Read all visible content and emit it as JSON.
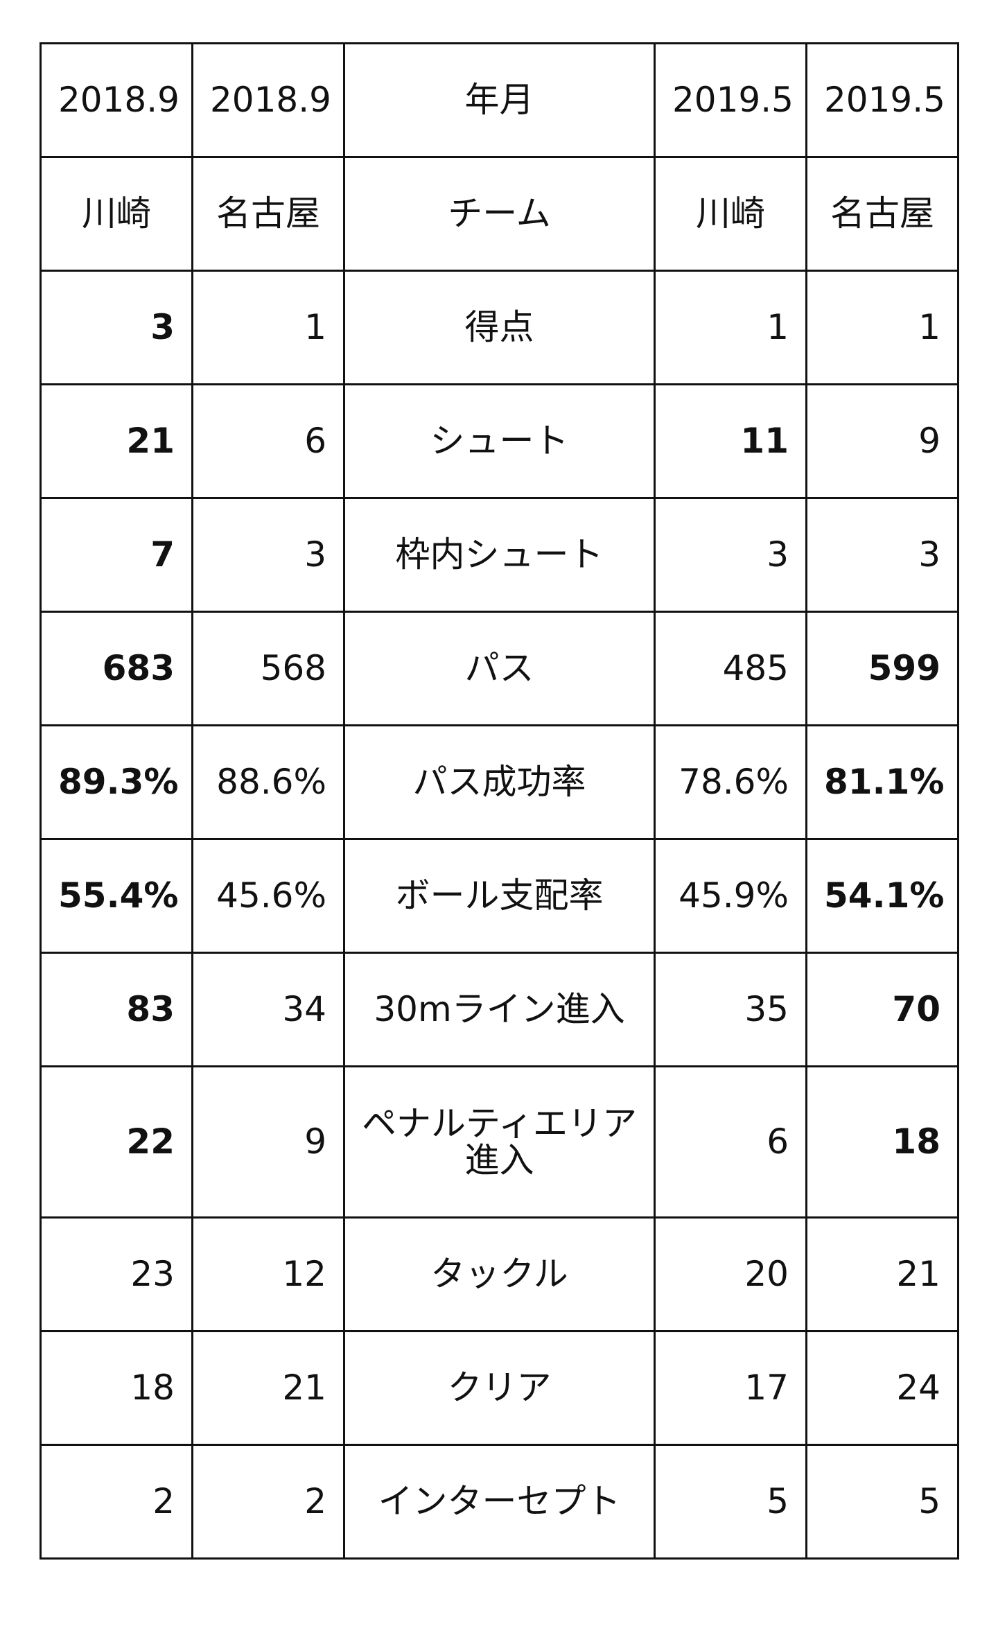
{
  "table": {
    "header": {
      "year_month": [
        "2018.9",
        "2018.9",
        "年月",
        "2019.5",
        "2019.5"
      ],
      "team": [
        "川崎",
        "名古屋",
        "チーム",
        "川崎",
        "名古屋"
      ]
    },
    "rows": [
      {
        "label": "得点",
        "values": [
          "3",
          "1",
          "1",
          "1"
        ],
        "bold": [
          true,
          false,
          false,
          false
        ]
      },
      {
        "label": "シュート",
        "values": [
          "21",
          "6",
          "11",
          "9"
        ],
        "bold": [
          true,
          false,
          true,
          false
        ]
      },
      {
        "label": "枠内シュート",
        "values": [
          "7",
          "3",
          "3",
          "3"
        ],
        "bold": [
          true,
          false,
          false,
          false
        ]
      },
      {
        "label": "パス",
        "values": [
          "683",
          "568",
          "485",
          "599"
        ],
        "bold": [
          true,
          false,
          false,
          true
        ]
      },
      {
        "label": "パス成功率",
        "values": [
          "89.3%",
          "88.6%",
          "78.6%",
          "81.1%"
        ],
        "bold": [
          true,
          false,
          false,
          true
        ]
      },
      {
        "label": "ボール支配率",
        "values": [
          "55.4%",
          "45.6%",
          "45.9%",
          "54.1%"
        ],
        "bold": [
          true,
          false,
          false,
          true
        ]
      },
      {
        "label": "30mライン進入",
        "values": [
          "83",
          "34",
          "35",
          "70"
        ],
        "bold": [
          true,
          false,
          false,
          true
        ]
      },
      {
        "label": "ペナルティエリア進入",
        "values": [
          "22",
          "9",
          "6",
          "18"
        ],
        "bold": [
          true,
          false,
          false,
          true
        ]
      },
      {
        "label": "タックル",
        "values": [
          "23",
          "12",
          "20",
          "21"
        ],
        "bold": [
          false,
          false,
          false,
          false
        ]
      },
      {
        "label": "クリア",
        "values": [
          "18",
          "21",
          "17",
          "24"
        ],
        "bold": [
          false,
          false,
          false,
          false
        ]
      },
      {
        "label": "インターセプト",
        "values": [
          "2",
          "2",
          "5",
          "5"
        ],
        "bold": [
          false,
          false,
          false,
          false
        ]
      }
    ]
  }
}
